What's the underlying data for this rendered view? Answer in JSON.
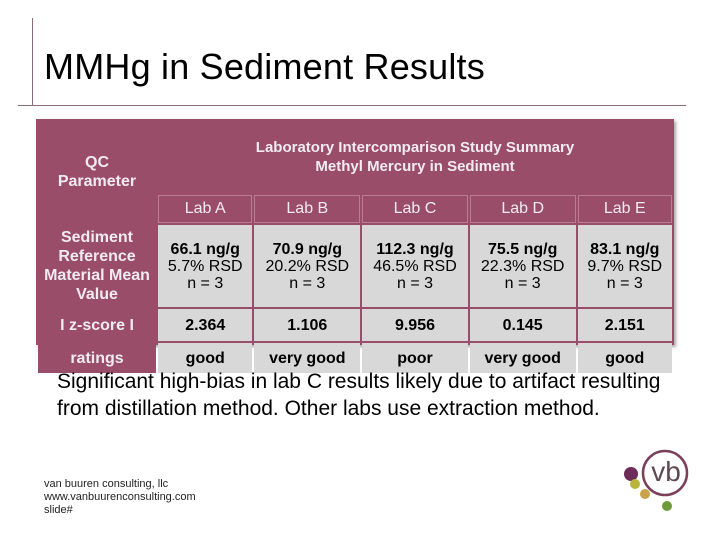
{
  "slide": {
    "title": "MMHg in Sediment Results",
    "body": "Significant high-bias in lab C results likely due to artifact resulting from distillation method. Other labs use extraction method.",
    "footer": [
      "van buuren consulting, llc",
      "www.vanbuurenconsulting.com",
      "slide#"
    ],
    "logo_text": "vb",
    "colors": {
      "table_header": "#9a4d68",
      "cell": "#d8d8d8",
      "rule": "#8d6b78"
    }
  },
  "table": {
    "corner_header": "QC Parameter",
    "summary_title_line1": "Laboratory Intercomparison Study Summary",
    "summary_title_line2": "Methyl Mercury in Sediment",
    "labs": [
      "Lab A",
      "Lab B",
      "Lab C",
      "Lab D",
      "Lab E"
    ],
    "mean_row": {
      "label": "Sediment Reference Material Mean Value",
      "cells": [
        {
          "value": "66.1 ng/g",
          "rsd": "5.7% RSD",
          "n": "n = 3"
        },
        {
          "value": "70.9 ng/g",
          "rsd": "20.2% RSD",
          "n": "n = 3"
        },
        {
          "value": "112.3 ng/g",
          "rsd": "46.5% RSD",
          "n": "n = 3"
        },
        {
          "value": "75.5 ng/g",
          "rsd": "22.3% RSD",
          "n": "n = 3"
        },
        {
          "value": "83.1 ng/g",
          "rsd": "9.7% RSD",
          "n": "n = 3"
        }
      ]
    },
    "zscore_row": {
      "label": "I z-score I",
      "values": [
        "2.364",
        "1.106",
        "9.956",
        "0.145",
        "2.151"
      ]
    },
    "ratings_row": {
      "label": "ratings",
      "values": [
        "good",
        "very good",
        "poor",
        "very good",
        "good"
      ]
    }
  }
}
